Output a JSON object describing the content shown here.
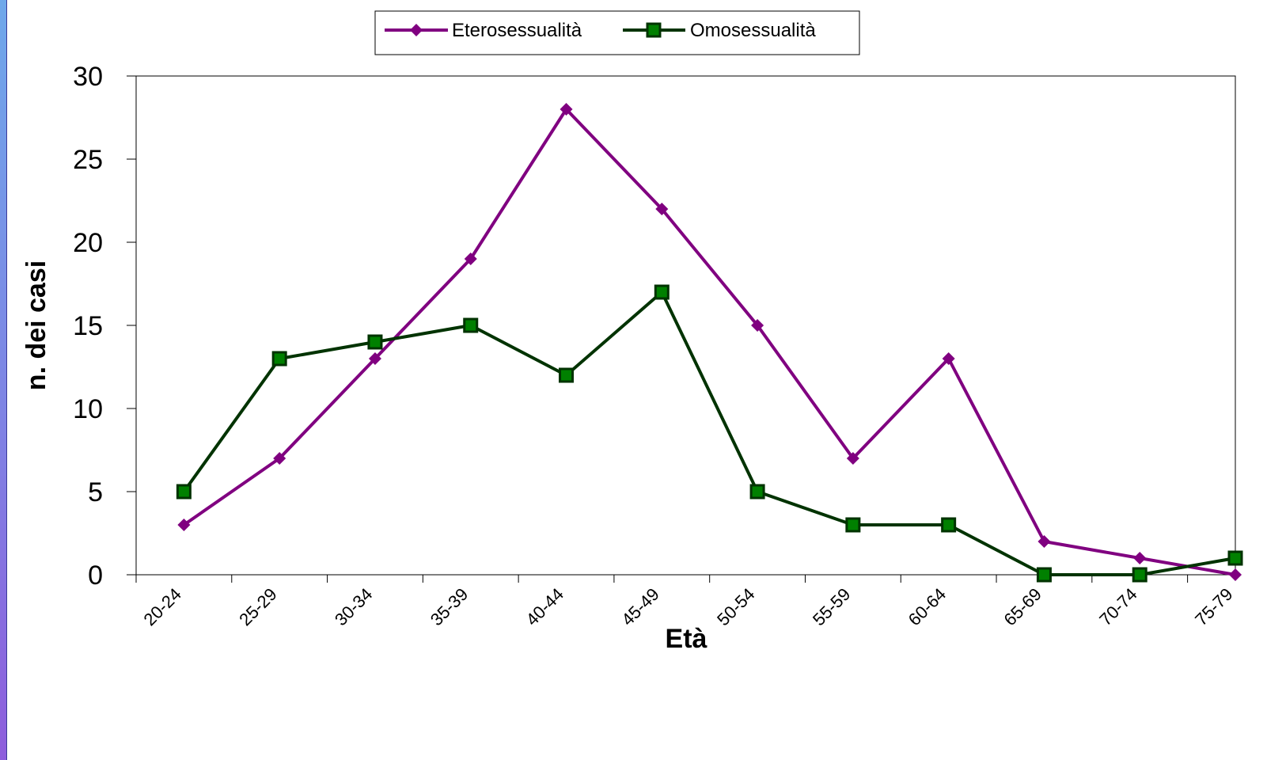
{
  "chart_data": {
    "type": "line",
    "title": "",
    "xlabel": "Età",
    "ylabel": "n. dei casi",
    "categories": [
      "20-24",
      "25-29",
      "30-34",
      "35-39",
      "40-44",
      "45-49",
      "50-54",
      "55-59",
      "60-64",
      "65-69",
      "70-74",
      "75-79"
    ],
    "series": [
      {
        "name": "Eterosessualità",
        "values": [
          3,
          7,
          13,
          19,
          28,
          22,
          15,
          7,
          13,
          2,
          1,
          0
        ],
        "color": "#800080",
        "marker": "diamond"
      },
      {
        "name": "Omosessualità",
        "values": [
          5,
          13,
          14,
          15,
          12,
          17,
          5,
          3,
          3,
          0,
          0,
          1
        ],
        "color": "#003300",
        "marker_fill": "#008000",
        "marker": "square"
      }
    ],
    "ylim": [
      0,
      30
    ],
    "yticks": [
      "0",
      "5",
      "10",
      "15",
      "20",
      "25",
      "30"
    ],
    "grid": false,
    "legend_position": "top-center"
  }
}
